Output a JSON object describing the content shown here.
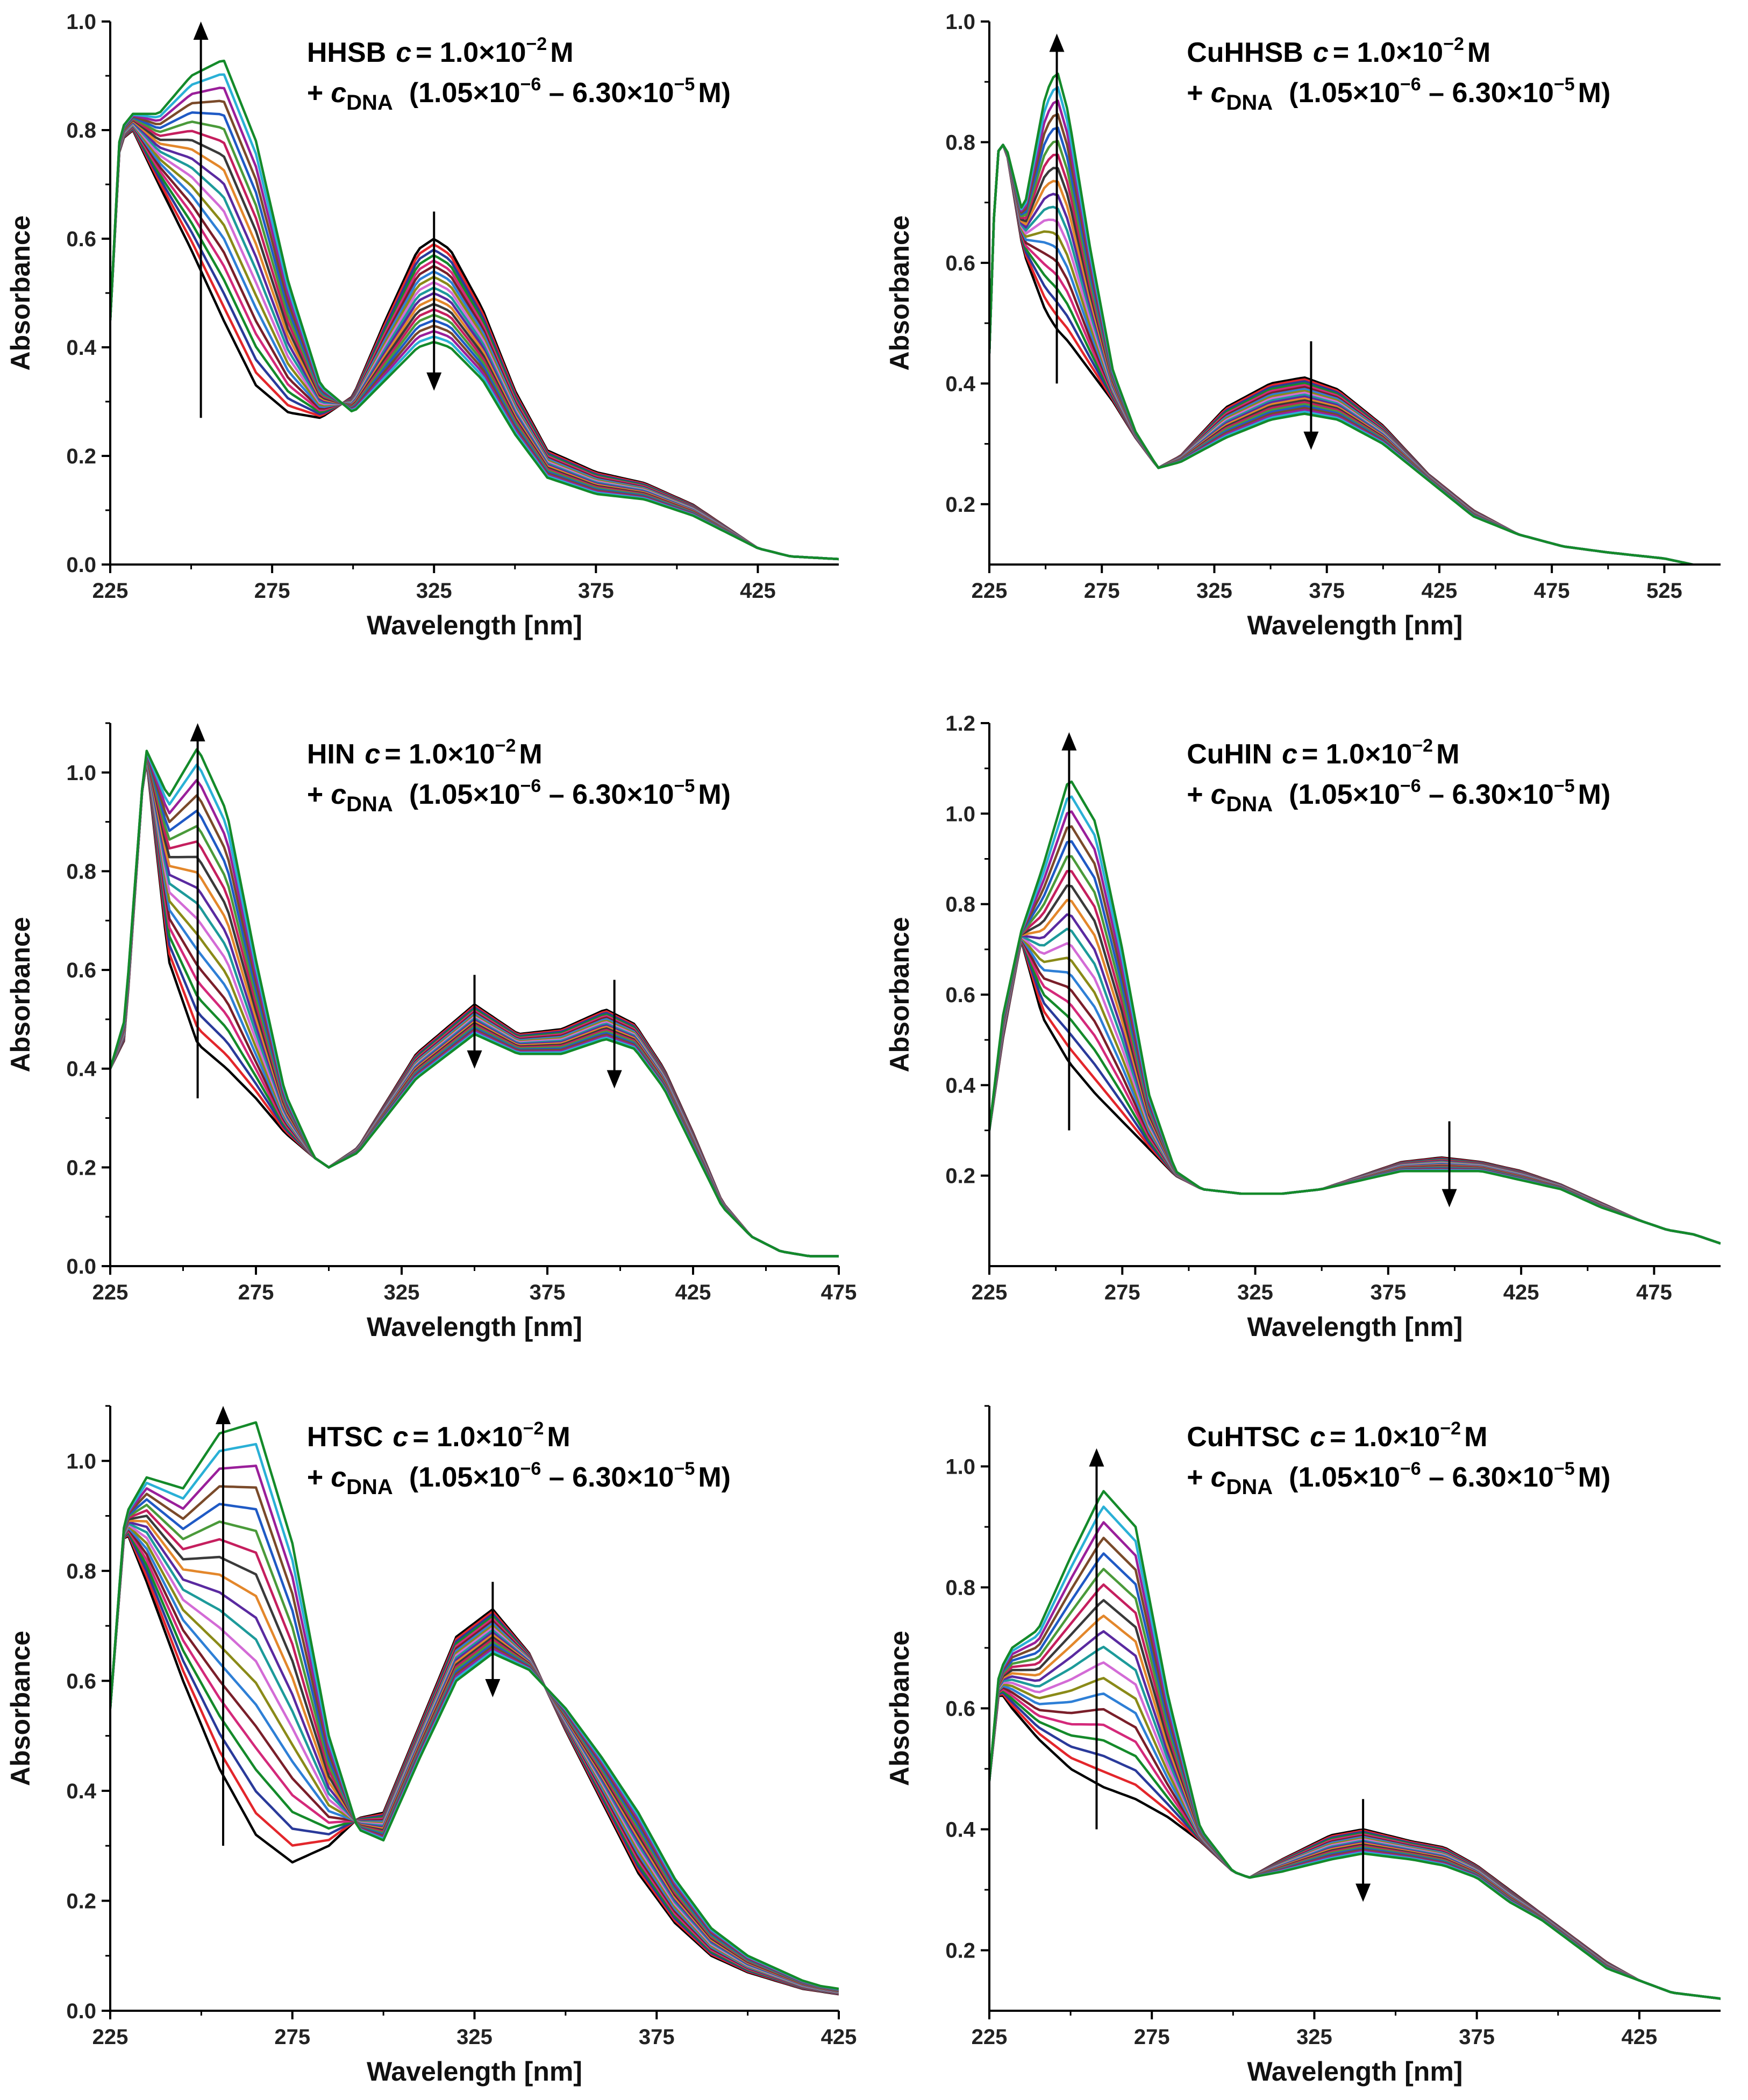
{
  "figure": {
    "series_colors": [
      "#000000",
      "#e3262b",
      "#2a3a9a",
      "#148a2a",
      "#d4297a",
      "#7a1f2a",
      "#2e7fd6",
      "#8a8a18",
      "#d36bd6",
      "#1d9a9a",
      "#5a2aa0",
      "#e3872b",
      "#3a3a3a",
      "#c51f5e",
      "#4a9a3a",
      "#1f5ac5",
      "#7a4a2a",
      "#9a1f9a",
      "#2ab0d6",
      "#d6b02a"
    ]
  },
  "chart_data": [
    {
      "id": "hhsb",
      "type": "line",
      "title": "",
      "annotation": {
        "compound": "HHSB",
        "c_symbol": "c",
        "conc_text": "= 1.0×10",
        "conc_exp": "−2",
        "conc_unit": "M",
        "plus": "+",
        "dna_symbol": "c",
        "dna_sub": "DNA",
        "range_open": "(1.05×10",
        "range_exp1": "−6",
        "range_mid": " – 6.30×10",
        "range_exp2": "−5",
        "range_close": "M)"
      },
      "xlabel": "Wavelength [nm]",
      "ylabel": "Absorbance",
      "xlim": [
        225,
        450
      ],
      "ylim": [
        0.0,
        1.0
      ],
      "x_ticks": [
        225,
        275,
        325,
        375,
        425
      ],
      "x_tick_labels": [
        "225",
        "275",
        "325",
        "375",
        "425"
      ],
      "y_ticks": [
        0.0,
        0.2,
        0.4,
        0.6,
        0.8,
        1.0
      ],
      "y_tick_labels": [
        "0.0",
        "0.2",
        "0.4",
        "0.6",
        "0.8",
        "1.0"
      ],
      "n_curves": 20,
      "x": [
        225,
        228,
        232,
        240,
        250,
        260,
        270,
        280,
        290,
        300,
        310,
        320,
        325,
        330,
        340,
        350,
        360,
        375,
        390,
        405,
        415,
        425,
        435,
        450
      ],
      "series_first": [
        0.45,
        0.78,
        0.8,
        0.7,
        0.58,
        0.45,
        0.33,
        0.28,
        0.27,
        0.31,
        0.45,
        0.58,
        0.6,
        0.58,
        0.47,
        0.32,
        0.21,
        0.17,
        0.15,
        0.11,
        0.07,
        0.03,
        0.015,
        0.01
      ],
      "series_last": [
        0.45,
        0.8,
        0.83,
        0.83,
        0.9,
        0.93,
        0.78,
        0.52,
        0.33,
        0.28,
        0.34,
        0.4,
        0.41,
        0.4,
        0.34,
        0.24,
        0.16,
        0.13,
        0.12,
        0.09,
        0.06,
        0.03,
        0.015,
        0.01
      ],
      "arrows": [
        {
          "x": 253,
          "y_from": 0.27,
          "y_to": 1.0,
          "direction": "up"
        },
        {
          "x": 325,
          "y_from": 0.65,
          "y_to": 0.32,
          "direction": "down"
        }
      ]
    },
    {
      "id": "cuhhsb",
      "type": "line",
      "title": "",
      "annotation": {
        "compound": "CuHHSB",
        "c_symbol": "c",
        "conc_text": "= 1.0×10",
        "conc_exp": "−2",
        "conc_unit": "M",
        "plus": "+",
        "dna_symbol": "c",
        "dna_sub": "DNA",
        "range_open": "(1.05×10",
        "range_exp1": "−6",
        "range_mid": " – 6.30×10",
        "range_exp2": "−5",
        "range_close": "M)"
      },
      "xlabel": "Wavelength [nm]",
      "ylabel": "Absorbance",
      "xlim": [
        225,
        550
      ],
      "ylim": [
        0.1,
        1.0
      ],
      "x_ticks": [
        225,
        275,
        325,
        375,
        425,
        475,
        525
      ],
      "x_tick_labels": [
        "225",
        "275",
        "325",
        "375",
        "425",
        "475",
        "525"
      ],
      "y_ticks": [
        0.2,
        0.4,
        0.6,
        0.8,
        1.0
      ],
      "y_tick_labels": [
        "0.2",
        "0.4",
        "0.6",
        "0.8",
        "1.0"
      ],
      "n_curves": 20,
      "x": [
        225,
        228,
        232,
        240,
        250,
        255,
        260,
        270,
        280,
        290,
        300,
        310,
        330,
        350,
        365,
        380,
        400,
        420,
        440,
        460,
        480,
        500,
        525,
        550
      ],
      "series_first": [
        0.45,
        0.78,
        0.8,
        0.62,
        0.52,
        0.49,
        0.47,
        0.42,
        0.37,
        0.31,
        0.26,
        0.28,
        0.36,
        0.4,
        0.41,
        0.39,
        0.33,
        0.25,
        0.19,
        0.15,
        0.13,
        0.12,
        0.11,
        0.09
      ],
      "series_last": [
        0.45,
        0.78,
        0.8,
        0.68,
        0.88,
        0.92,
        0.85,
        0.62,
        0.42,
        0.32,
        0.26,
        0.27,
        0.31,
        0.34,
        0.35,
        0.34,
        0.3,
        0.24,
        0.18,
        0.15,
        0.13,
        0.12,
        0.11,
        0.09
      ],
      "arrows": [
        {
          "x": 255,
          "y_from": 0.4,
          "y_to": 0.98,
          "direction": "up"
        },
        {
          "x": 368,
          "y_from": 0.47,
          "y_to": 0.29,
          "direction": "down"
        }
      ]
    },
    {
      "id": "hin",
      "type": "line",
      "title": "",
      "annotation": {
        "compound": "HIN",
        "c_symbol": "c",
        "conc_text": "= 1.0×10",
        "conc_exp": "−2",
        "conc_unit": "M",
        "plus": "+",
        "dna_symbol": "c",
        "dna_sub": "DNA",
        "range_open": "(1.05×10",
        "range_exp1": "−6",
        "range_mid": " – 6.30×10",
        "range_exp2": "−5",
        "range_close": "M)"
      },
      "xlabel": "Wavelength [nm]",
      "ylabel": "Absorbance",
      "xlim": [
        225,
        475
      ],
      "ylim": [
        0.0,
        1.1
      ],
      "x_ticks": [
        225,
        275,
        325,
        375,
        425,
        475
      ],
      "x_tick_labels": [
        "225",
        "275",
        "325",
        "375",
        "425",
        "475"
      ],
      "y_ticks": [
        0.0,
        0.2,
        0.4,
        0.6,
        0.8,
        1.0
      ],
      "y_tick_labels": [
        "0.0",
        "0.2",
        "0.4",
        "0.6",
        "0.8",
        "1.0"
      ],
      "n_curves": 20,
      "x": [
        225,
        230,
        237,
        245,
        255,
        265,
        275,
        285,
        295,
        300,
        310,
        330,
        350,
        365,
        380,
        395,
        405,
        415,
        425,
        435,
        445,
        455,
        465,
        475
      ],
      "series_first": [
        0.4,
        0.46,
        1.05,
        0.62,
        0.45,
        0.4,
        0.34,
        0.27,
        0.22,
        0.2,
        0.24,
        0.43,
        0.53,
        0.47,
        0.48,
        0.52,
        0.49,
        0.4,
        0.27,
        0.13,
        0.06,
        0.03,
        0.02,
        0.02
      ],
      "series_last": [
        0.4,
        0.5,
        1.05,
        0.95,
        1.05,
        0.92,
        0.62,
        0.35,
        0.22,
        0.2,
        0.23,
        0.38,
        0.47,
        0.43,
        0.43,
        0.46,
        0.44,
        0.36,
        0.24,
        0.12,
        0.06,
        0.03,
        0.02,
        0.02
      ],
      "arrows": [
        {
          "x": 255,
          "y_from": 0.34,
          "y_to": 1.1,
          "direction": "up"
        },
        {
          "x": 350,
          "y_from": 0.59,
          "y_to": 0.4,
          "direction": "down"
        },
        {
          "x": 398,
          "y_from": 0.58,
          "y_to": 0.36,
          "direction": "down"
        }
      ]
    },
    {
      "id": "cuhin",
      "type": "line",
      "title": "",
      "annotation": {
        "compound": "CuHIN",
        "c_symbol": "c",
        "conc_text": "= 1.0×10",
        "conc_exp": "−2",
        "conc_unit": "M",
        "plus": "+",
        "dna_symbol": "c",
        "dna_sub": "DNA",
        "range_open": "(1.05×10",
        "range_exp1": "−6",
        "range_mid": " – 6.30×10",
        "range_exp2": "−5",
        "range_close": "M)"
      },
      "xlabel": "Wavelength [nm]",
      "ylabel": "Absorbance",
      "xlim": [
        225,
        500
      ],
      "ylim": [
        0.0,
        1.2
      ],
      "x_ticks": [
        225,
        275,
        325,
        375,
        425,
        475
      ],
      "x_tick_labels": [
        "225",
        "275",
        "325",
        "375",
        "425",
        "475"
      ],
      "y_ticks": [
        0.2,
        0.4,
        0.6,
        0.8,
        1.0,
        1.2
      ],
      "y_tick_labels": [
        "0.2",
        "0.4",
        "0.6",
        "0.8",
        "1.0",
        "1.2"
      ],
      "n_curves": 20,
      "x": [
        225,
        230,
        237,
        245,
        255,
        265,
        275,
        285,
        295,
        305,
        320,
        335,
        350,
        365,
        380,
        395,
        410,
        425,
        440,
        455,
        470,
        480,
        490,
        500
      ],
      "series_first": [
        0.3,
        0.5,
        0.72,
        0.55,
        0.45,
        0.38,
        0.32,
        0.26,
        0.2,
        0.17,
        0.16,
        0.16,
        0.17,
        0.2,
        0.23,
        0.24,
        0.23,
        0.21,
        0.18,
        0.14,
        0.1,
        0.08,
        0.07,
        0.05
      ],
      "series_last": [
        0.3,
        0.55,
        0.74,
        0.88,
        1.08,
        0.98,
        0.7,
        0.38,
        0.21,
        0.17,
        0.16,
        0.16,
        0.17,
        0.19,
        0.21,
        0.21,
        0.21,
        0.19,
        0.17,
        0.13,
        0.1,
        0.08,
        0.07,
        0.05
      ],
      "arrows": [
        {
          "x": 255,
          "y_from": 0.3,
          "y_to": 1.18,
          "direction": "up"
        },
        {
          "x": 398,
          "y_from": 0.32,
          "y_to": 0.13,
          "direction": "down"
        }
      ]
    },
    {
      "id": "htsc",
      "type": "line",
      "title": "",
      "annotation": {
        "compound": "HTSC",
        "c_symbol": "c",
        "conc_text": "= 1.0×10",
        "conc_exp": "−2",
        "conc_unit": "M",
        "plus": "+",
        "dna_symbol": "c",
        "dna_sub": "DNA",
        "range_open": "(1.05×10",
        "range_exp1": "−6",
        "range_mid": " – 6.30×10",
        "range_exp2": "−5",
        "range_close": "M)"
      },
      "xlabel": "Wavelength [nm]",
      "ylabel": "Absorbance",
      "xlim": [
        225,
        425
      ],
      "ylim": [
        0.0,
        1.1
      ],
      "x_ticks": [
        225,
        275,
        325,
        375,
        425
      ],
      "x_tick_labels": [
        "225",
        "275",
        "325",
        "375",
        "425"
      ],
      "y_ticks": [
        0.0,
        0.2,
        0.4,
        0.6,
        0.8,
        1.0
      ],
      "y_tick_labels": [
        "0.0",
        "0.2",
        "0.4",
        "0.6",
        "0.8",
        "1.0"
      ],
      "n_curves": 20,
      "x": [
        225,
        229,
        235,
        245,
        255,
        265,
        275,
        285,
        293,
        300,
        310,
        320,
        330,
        340,
        350,
        360,
        370,
        380,
        390,
        400,
        410,
        415,
        420,
        425
      ],
      "series_first": [
        0.55,
        0.88,
        0.78,
        0.6,
        0.44,
        0.32,
        0.27,
        0.3,
        0.35,
        0.36,
        0.52,
        0.68,
        0.73,
        0.65,
        0.51,
        0.38,
        0.25,
        0.16,
        0.1,
        0.07,
        0.05,
        0.04,
        0.035,
        0.03
      ],
      "series_last": [
        0.55,
        0.9,
        0.97,
        0.95,
        1.05,
        1.07,
        0.85,
        0.5,
        0.33,
        0.31,
        0.46,
        0.6,
        0.65,
        0.62,
        0.55,
        0.46,
        0.36,
        0.24,
        0.15,
        0.1,
        0.07,
        0.055,
        0.045,
        0.04
      ],
      "arrows": [
        {
          "x": 256,
          "y_from": 0.3,
          "y_to": 1.1,
          "direction": "up"
        },
        {
          "x": 330,
          "y_from": 0.78,
          "y_to": 0.57,
          "direction": "down"
        }
      ]
    },
    {
      "id": "cuhtsc",
      "type": "line",
      "title": "",
      "annotation": {
        "compound": "CuHTSC",
        "c_symbol": "c",
        "conc_text": "= 1.0×10",
        "conc_exp": "−2",
        "conc_unit": "M",
        "plus": "+",
        "dna_symbol": "c",
        "dna_sub": "DNA",
        "range_open": "(1.05×10",
        "range_exp1": "−6",
        "range_mid": " – 6.30×10",
        "range_exp2": "−5",
        "range_close": "M)"
      },
      "xlabel": "Wavelength [nm]",
      "ylabel": "Absorbance",
      "xlim": [
        225,
        450
      ],
      "ylim": [
        0.1,
        1.1
      ],
      "x_ticks": [
        225,
        275,
        325,
        375,
        425
      ],
      "x_tick_labels": [
        "225",
        "275",
        "325",
        "375",
        "425"
      ],
      "y_ticks": [
        0.2,
        0.4,
        0.6,
        0.8,
        1.0
      ],
      "y_tick_labels": [
        "0.2",
        "0.4",
        "0.6",
        "0.8",
        "1.0"
      ],
      "n_curves": 20,
      "x": [
        225,
        228,
        232,
        240,
        250,
        260,
        270,
        280,
        290,
        300,
        305,
        315,
        330,
        340,
        355,
        365,
        375,
        385,
        395,
        405,
        415,
        425,
        435,
        450
      ],
      "series_first": [
        0.48,
        0.63,
        0.6,
        0.55,
        0.5,
        0.47,
        0.45,
        0.42,
        0.38,
        0.33,
        0.32,
        0.35,
        0.39,
        0.4,
        0.38,
        0.37,
        0.34,
        0.3,
        0.26,
        0.22,
        0.18,
        0.15,
        0.13,
        0.12
      ],
      "series_last": [
        0.48,
        0.66,
        0.7,
        0.73,
        0.85,
        0.96,
        0.9,
        0.62,
        0.4,
        0.33,
        0.32,
        0.33,
        0.35,
        0.36,
        0.35,
        0.34,
        0.32,
        0.28,
        0.25,
        0.21,
        0.17,
        0.15,
        0.13,
        0.12
      ],
      "arrows": [
        {
          "x": 258,
          "y_from": 0.4,
          "y_to": 1.03,
          "direction": "up"
        },
        {
          "x": 340,
          "y_from": 0.45,
          "y_to": 0.28,
          "direction": "down"
        }
      ]
    }
  ]
}
